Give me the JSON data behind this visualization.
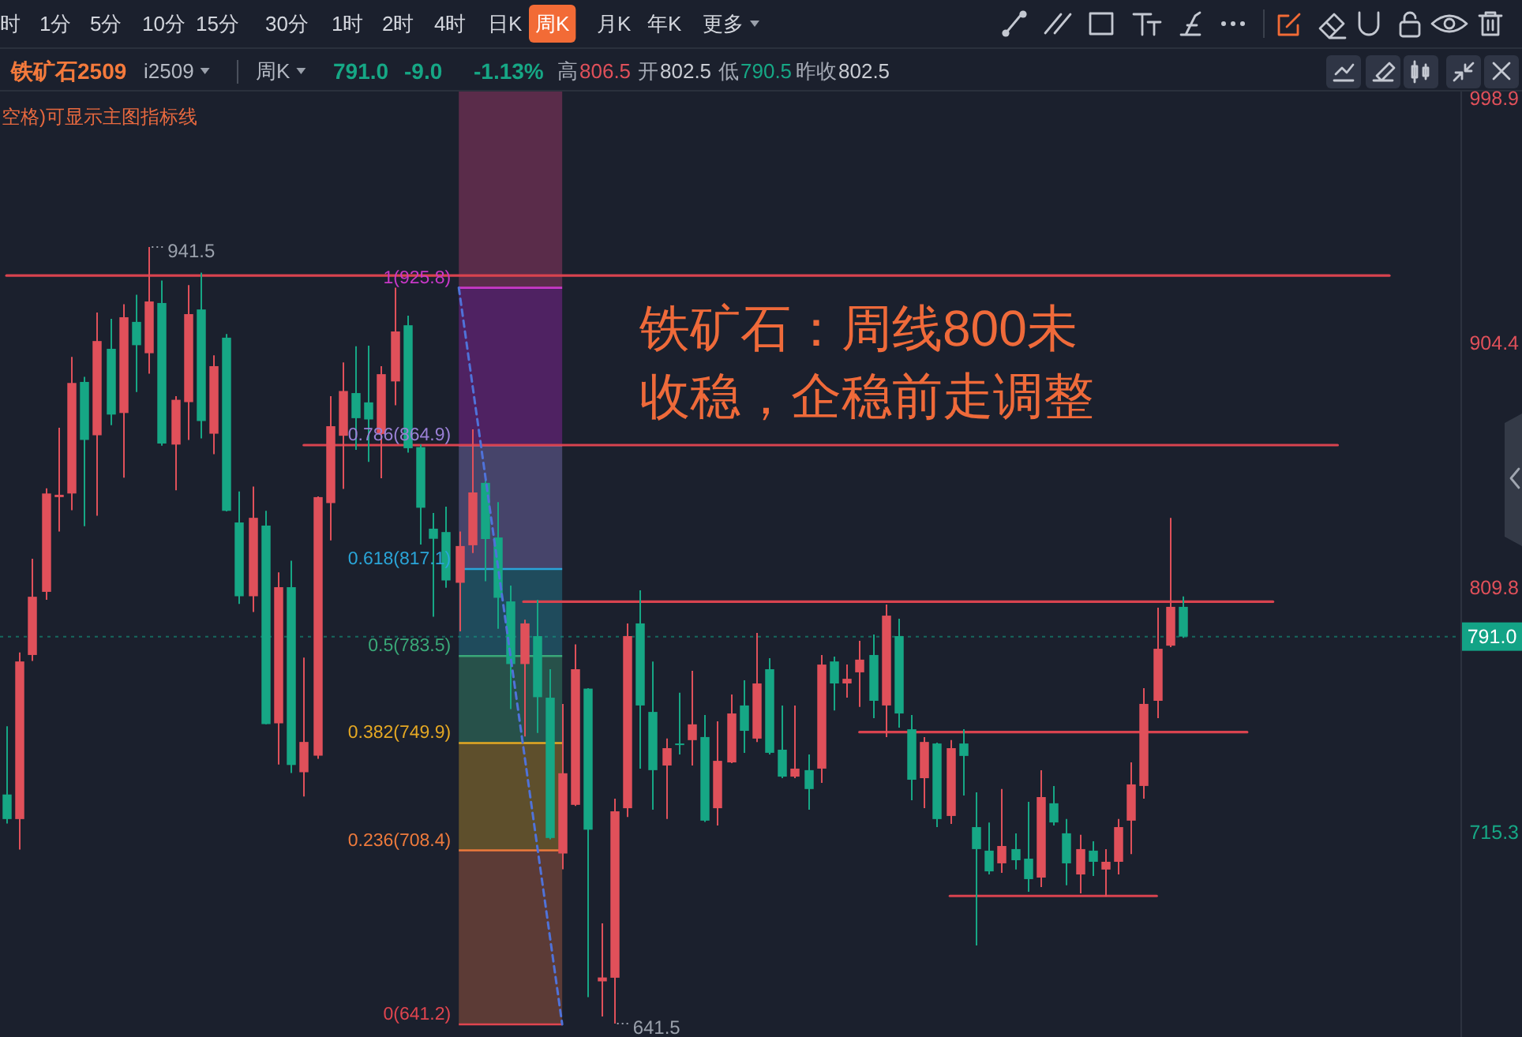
{
  "chart_data": {
    "type": "candlestick",
    "title": "铁矿石2509",
    "categories": [
      null,
      null,
      null,
      null,
      null,
      null,
      null,
      null,
      null,
      null,
      null,
      null,
      null,
      null,
      null,
      null,
      null,
      null,
      null,
      null,
      null,
      null,
      null,
      null,
      null,
      null,
      null,
      null,
      null,
      null,
      null,
      null,
      null,
      null,
      null,
      null,
      null,
      null,
      null,
      null,
      null,
      null,
      null,
      null,
      null,
      null,
      null,
      null,
      null,
      null,
      null,
      null,
      null,
      null,
      null,
      null,
      null,
      null,
      null,
      null,
      null,
      null,
      null,
      null,
      null,
      null,
      null,
      null,
      null,
      null,
      null,
      null,
      null,
      null,
      null,
      null,
      null,
      null,
      null,
      null,
      null,
      null,
      null,
      null,
      null,
      null,
      null,
      null,
      null,
      null,
      null,
      null,
      null,
      null,
      null,
      null,
      null,
      null,
      null,
      null,
      null,
      null,
      null,
      null,
      null,
      null,
      null,
      null,
      null,
      null,
      null,
      null,
      null
    ],
    "ohlc": [
      [
        730.0,
        756.4,
        718.8,
        720.5
      ],
      [
        720.5,
        784.9,
        708.7,
        781.4
      ],
      [
        783.9,
        821.1,
        781.6,
        806.4
      ],
      [
        808.3,
        848.3,
        805.2,
        846.3
      ],
      [
        844.9,
        871.7,
        831.6,
        845.8
      ],
      [
        846.3,
        899.1,
        839.8,
        889.0
      ],
      [
        889.4,
        891.4,
        833.7,
        867.0
      ],
      [
        868.8,
        916.2,
        837.7,
        905.2
      ],
      [
        902.2,
        913.8,
        872.7,
        876.8
      ],
      [
        877.4,
        919.4,
        852.4,
        914.4
      ],
      [
        912.6,
        923.1,
        885.5,
        903.6
      ],
      [
        900.5,
        941.5,
        892.6,
        920.5
      ],
      [
        919.9,
        928.6,
        864.8,
        865.6
      ],
      [
        865.2,
        883.9,
        847.5,
        882.5
      ],
      [
        881.6,
        926.8,
        867.0,
        915.6
      ],
      [
        917.4,
        931.6,
        867.6,
        874.3
      ],
      [
        869.4,
        899.7,
        861.5,
        895.5
      ],
      [
        906.5,
        907.9,
        839.4,
        839.6
      ],
      [
        835.1,
        847.1,
        803.6,
        806.6
      ],
      [
        806.6,
        849.0,
        800.5,
        836.9
      ],
      [
        833.9,
        839.6,
        757.1,
        757.2
      ],
      [
        757.5,
        815.8,
        741.6,
        810.1
      ],
      [
        810.1,
        820.3,
        738.3,
        741.4
      ],
      [
        738.6,
        782.9,
        729.2,
        750.3
      ],
      [
        745.0,
        845.2,
        743.8,
        844.9
      ],
      [
        842.6,
        883.9,
        828.2,
        872.3
      ],
      [
        868.6,
        896.9,
        848.1,
        885.9
      ],
      [
        885.1,
        903.2,
        863.2,
        875.4
      ],
      [
        881.5,
        903.4,
        858.5,
        874.9
      ],
      [
        869.3,
        895.5,
        852.2,
        892.4
      ],
      [
        889.6,
        925.8,
        880.4,
        908.9
      ],
      [
        911.3,
        915.0,
        862.1,
        863.8
      ],
      [
        864.2,
        865.2,
        826.6,
        840.8
      ],
      [
        832.7,
        838.8,
        798.7,
        828.8
      ],
      [
        831.4,
        841.2,
        809.9,
        812.7
      ],
      [
        811.8,
        831.6,
        793.0,
        826.0
      ],
      [
        826.3,
        871.1,
        823.3,
        846.7
      ],
      [
        850.4,
        852.0,
        812.4,
        828.7
      ],
      [
        829.3,
        843.0,
        794.0,
        806.0
      ],
      [
        804.6,
        810.7,
        763.0,
        780.4
      ],
      [
        780.4,
        797.5,
        752.4,
        796.1
      ],
      [
        791.2,
        805.2,
        753.8,
        767.6
      ],
      [
        767.4,
        778.4,
        712.7,
        713.2
      ],
      [
        707.2,
        765.0,
        701.1,
        738.2
      ],
      [
        726.0,
        788.0,
        725.6,
        778.4
      ],
      [
        770.9,
        771.1,
        651.7,
        716.4
      ],
      [
        657.8,
        680.2,
        644.2,
        659.3
      ],
      [
        659.2,
        728.4,
        641.5,
        723.5
      ],
      [
        724.7,
        796.1,
        721.3,
        791.2
      ],
      [
        796.1,
        808.9,
        740.0,
        764.4
      ],
      [
        761.9,
        781.4,
        724.1,
        739.4
      ],
      [
        741.2,
        751.6,
        720.5,
        747.9
      ],
      [
        749.7,
        769.3,
        745.5,
        749.1
      ],
      [
        751.0,
        777.8,
        741.2,
        757.1
      ],
      [
        752.2,
        760.7,
        719.4,
        719.9
      ],
      [
        724.7,
        758.3,
        718.0,
        743.0
      ],
      [
        742.4,
        768.6,
        742.1,
        761.3
      ],
      [
        764.4,
        774.1,
        746.1,
        754.6
      ],
      [
        751.6,
        792.4,
        750.3,
        772.9
      ],
      [
        778.4,
        782.7,
        745.5,
        746.1
      ],
      [
        747.3,
        764.4,
        736.3,
        736.9
      ],
      [
        736.9,
        764.4,
        736.3,
        740.0
      ],
      [
        739.4,
        745.5,
        724.1,
        732.1
      ],
      [
        740.0,
        783.9,
        734.5,
        780.2
      ],
      [
        781.4,
        783.3,
        762.5,
        772.9
      ],
      [
        772.9,
        780.2,
        767.4,
        774.7
      ],
      [
        777.2,
        789.4,
        763.8,
        782.1
      ],
      [
        783.9,
        791.8,
        759.5,
        766.2
      ],
      [
        764.4,
        803.4,
        752.2,
        799.1
      ],
      [
        791.2,
        797.9,
        755.8,
        761.3
      ],
      [
        755.2,
        760.7,
        727.8,
        735.7
      ],
      [
        736.3,
        752.2,
        724.7,
        750.3
      ],
      [
        749.7,
        750.0,
        717.4,
        720.5
      ],
      [
        721.7,
        751.0,
        718.6,
        747.9
      ],
      [
        749.7,
        755.2,
        729.6,
        744.9
      ],
      [
        717.4,
        730.8,
        671.7,
        708.9
      ],
      [
        708.3,
        719.2,
        699.1,
        700.3
      ],
      [
        703.4,
        732.1,
        699.7,
        710.1
      ],
      [
        708.9,
        715.0,
        701.0,
        704.6
      ],
      [
        705.2,
        727.2,
        692.4,
        697.3
      ],
      [
        697.9,
        739.4,
        694.2,
        729.0
      ],
      [
        726.6,
        733.3,
        718.0,
        719.2
      ],
      [
        715.0,
        720.5,
        694.9,
        703.4
      ],
      [
        699.1,
        714.4,
        691.8,
        708.9
      ],
      [
        708.3,
        711.9,
        698.5,
        704.0
      ],
      [
        701.0,
        708.9,
        690.6,
        704.0
      ],
      [
        704.0,
        720.5,
        699.1,
        717.4
      ],
      [
        719.9,
        742.4,
        707.0,
        733.9
      ],
      [
        733.3,
        771.1,
        728.4,
        765.0
      ],
      [
        766.2,
        802.2,
        759.5,
        786.3
      ],
      [
        787.5,
        836.9,
        786.9,
        802.5
      ],
      [
        802.5,
        806.5,
        790.5,
        791.0
      ],
      null,
      null,
      null,
      null,
      null,
      null,
      null,
      null,
      null,
      null,
      null,
      null,
      null,
      null,
      null,
      null,
      null,
      null,
      null,
      null,
      null
    ],
    "colors": [
      "#16a785",
      "#e0505a",
      "#e0505a",
      "#e0505a",
      "#e0505a",
      "#e0505a",
      "#16a785",
      "#e0505a",
      "#16a785",
      "#e0505a",
      "#16a785",
      "#e0505a",
      "#16a785",
      "#e0505a",
      "#e0505a",
      "#16a785",
      "#e0505a",
      "#16a785",
      "#16a785",
      "#e0505a",
      "#16a785",
      "#e0505a",
      "#16a785",
      "#e0505a",
      "#e0505a",
      "#e0505a",
      "#e0505a",
      "#16a785",
      "#16a785",
      "#e0505a",
      "#e0505a",
      "#16a785",
      "#16a785",
      "#16a785",
      "#16a785",
      "#e0505a",
      "#e0505a",
      "#16a785",
      "#16a785",
      "#16a785",
      "#e0505a",
      "#16a785",
      "#16a785",
      "#e0505a",
      "#e0505a",
      "#16a785",
      "#e0505a",
      "#e0505a",
      "#e0505a",
      "#16a785",
      "#16a785",
      "#e0505a",
      "#16a785",
      "#e0505a",
      "#16a785",
      "#e0505a",
      "#e0505a",
      "#16a785",
      "#e0505a",
      "#16a785",
      "#16a785",
      "#e0505a",
      "#16a785",
      "#e0505a",
      "#16a785",
      "#e0505a",
      "#e0505a",
      "#16a785",
      "#e0505a",
      "#16a785",
      "#16a785",
      "#e0505a",
      "#16a785",
      "#e0505a",
      "#16a785",
      "#16a785",
      "#16a785",
      "#e0505a",
      "#16a785",
      "#16a785",
      "#e0505a",
      "#16a785",
      "#16a785",
      "#e0505a",
      "#16a785",
      "#e0505a",
      "#e0505a",
      "#e0505a",
      "#e0505a",
      "#e0505a",
      "#e0505a",
      "#16a785",
      null,
      null,
      null,
      null,
      null,
      null,
      null,
      null,
      null,
      null,
      null,
      null,
      null,
      null,
      null,
      null,
      null,
      null,
      null,
      null,
      null
    ],
    "series": [
      {
        "type": "line",
        "color": "#4f72d9",
        "line_style": "dashed",
        "values": [
          null,
          null,
          null,
          null,
          null,
          null,
          null,
          null,
          null,
          null,
          null,
          null,
          null,
          null,
          null,
          null,
          null,
          null,
          null,
          null,
          null,
          null,
          null,
          null,
          null,
          null,
          null,
          null,
          null,
          null,
          null,
          null,
          null,
          null,
          null,
          925.8,
          890.2,
          854.7,
          819.1,
          783.5,
          748.0,
          712.4,
          676.8,
          641.2,
          null,
          null,
          null,
          null,
          null,
          null,
          null,
          null,
          null,
          null,
          null,
          null,
          null,
          null,
          null,
          null,
          null,
          null,
          null,
          null,
          null,
          null,
          null,
          null,
          null,
          null,
          null,
          null,
          null,
          null,
          null,
          null,
          null,
          null,
          null,
          null,
          null,
          null,
          null,
          null,
          null,
          null,
          null,
          null,
          null,
          null,
          null,
          null,
          null,
          null,
          null,
          null,
          null,
          null,
          null,
          null,
          null,
          null,
          null,
          null,
          null,
          null,
          null,
          null,
          null,
          null,
          null,
          null,
          null
        ]
      },
      {
        "type": "line",
        "color": "#d9434f",
        "values": [
          930.5,
          930.5,
          930.5,
          930.5,
          930.5,
          930.5,
          930.5,
          930.5,
          930.5,
          930.5,
          930.5,
          930.5,
          930.5,
          930.5,
          930.5,
          930.5,
          930.5,
          930.5,
          930.5,
          930.5,
          930.5,
          930.5,
          930.5,
          930.5,
          930.5,
          930.5,
          930.5,
          930.5,
          930.5,
          930.5,
          930.5,
          930.5,
          930.5,
          930.5,
          930.5,
          930.5,
          930.5,
          930.5,
          930.5,
          930.5,
          930.5,
          930.5,
          930.5,
          930.5,
          930.5,
          930.5,
          930.5,
          930.5,
          930.5,
          930.5,
          930.5,
          930.5,
          930.5,
          930.5,
          930.5,
          930.5,
          930.5,
          930.5,
          930.5,
          930.5,
          930.5,
          930.5,
          930.5,
          930.5,
          930.5,
          930.5,
          930.5,
          930.5,
          930.5,
          930.5,
          930.5,
          930.5,
          930.5,
          930.5,
          930.5,
          930.5,
          930.5,
          930.5,
          930.5,
          930.5,
          930.5,
          930.5,
          930.5,
          930.5,
          930.5,
          930.5,
          930.5,
          930.5,
          930.5,
          930.5,
          930.5,
          930.5,
          930.5,
          930.5,
          930.5,
          930.5,
          930.5,
          930.5,
          930.5,
          930.5,
          930.5,
          930.5,
          930.5,
          930.5,
          930.5,
          930.5,
          930.5,
          930.5,
          null,
          null,
          null,
          null,
          null
        ]
      },
      {
        "type": "line",
        "color": "#d9434f",
        "values": [
          null,
          null,
          null,
          null,
          null,
          null,
          null,
          null,
          null,
          null,
          null,
          null,
          null,
          null,
          null,
          null,
          null,
          null,
          null,
          null,
          null,
          null,
          null,
          865.0,
          865.0,
          865.0,
          865.0,
          865.0,
          865.0,
          865.0,
          865.0,
          865.0,
          865.0,
          865.0,
          865.0,
          865.0,
          865.0,
          865.0,
          865.0,
          865.0,
          865.0,
          865.0,
          865.0,
          865.0,
          865.0,
          865.0,
          865.0,
          865.0,
          865.0,
          865.0,
          865.0,
          865.0,
          865.0,
          865.0,
          865.0,
          865.0,
          865.0,
          865.0,
          865.0,
          865.0,
          865.0,
          865.0,
          865.0,
          865.0,
          865.0,
          865.0,
          865.0,
          865.0,
          865.0,
          865.0,
          865.0,
          865.0,
          865.0,
          865.0,
          865.0,
          865.0,
          865.0,
          865.0,
          865.0,
          865.0,
          865.0,
          865.0,
          865.0,
          865.0,
          865.0,
          865.0,
          865.0,
          865.0,
          865.0,
          865.0,
          865.0,
          865.0,
          865.0,
          865.0,
          865.0,
          865.0,
          865.0,
          865.0,
          865.0,
          865.0,
          865.0,
          865.0,
          865.0,
          865.0,
          null,
          null,
          null,
          null,
          null,
          null,
          null,
          null,
          null
        ]
      },
      {
        "type": "line",
        "color": "#d9434f",
        "values": [
          null,
          null,
          null,
          null,
          null,
          null,
          null,
          null,
          null,
          null,
          null,
          null,
          null,
          null,
          null,
          null,
          null,
          null,
          null,
          null,
          null,
          null,
          null,
          null,
          null,
          null,
          null,
          null,
          null,
          null,
          null,
          null,
          null,
          null,
          null,
          null,
          null,
          null,
          null,
          null,
          804.5,
          804.5,
          804.5,
          804.5,
          804.5,
          804.5,
          804.5,
          804.5,
          804.5,
          804.5,
          804.5,
          804.5,
          804.5,
          804.5,
          804.5,
          804.5,
          804.5,
          804.5,
          804.5,
          804.5,
          804.5,
          804.5,
          804.5,
          804.5,
          804.5,
          804.5,
          804.5,
          804.5,
          804.5,
          804.5,
          804.5,
          804.5,
          804.5,
          804.5,
          804.5,
          804.5,
          804.5,
          804.5,
          804.5,
          804.5,
          804.5,
          804.5,
          804.5,
          804.5,
          804.5,
          804.5,
          804.5,
          804.5,
          804.5,
          804.5,
          804.5,
          804.5,
          804.5,
          804.5,
          804.5,
          804.5,
          804.5,
          804.5,
          804.5,
          null,
          null,
          null,
          null,
          null,
          null,
          null,
          null,
          null,
          null,
          null,
          null,
          null,
          null
        ]
      },
      {
        "type": "line",
        "color": "#d9434f",
        "values": [
          null,
          null,
          null,
          null,
          null,
          null,
          null,
          null,
          null,
          null,
          null,
          null,
          null,
          null,
          null,
          null,
          null,
          null,
          null,
          null,
          null,
          null,
          null,
          null,
          null,
          null,
          null,
          null,
          null,
          null,
          null,
          null,
          null,
          null,
          null,
          null,
          null,
          null,
          null,
          null,
          null,
          null,
          null,
          null,
          null,
          null,
          null,
          null,
          null,
          null,
          null,
          null,
          null,
          null,
          null,
          null,
          null,
          null,
          null,
          null,
          null,
          null,
          null,
          null,
          null,
          null,
          754.1,
          754.1,
          754.1,
          754.1,
          754.1,
          754.1,
          754.1,
          754.1,
          754.1,
          754.1,
          754.1,
          754.1,
          754.1,
          754.1,
          754.1,
          754.1,
          754.1,
          754.1,
          754.1,
          754.1,
          754.1,
          754.1,
          754.1,
          754.1,
          754.1,
          754.1,
          754.1,
          754.1,
          754.1,
          754.1,
          754.1,
          null,
          null,
          null,
          null,
          null,
          null,
          null,
          null,
          null,
          null,
          null,
          null,
          null,
          null,
          null,
          null
        ]
      },
      {
        "type": "line",
        "color": "#d9434f",
        "values": [
          null,
          null,
          null,
          null,
          null,
          null,
          null,
          null,
          null,
          null,
          null,
          null,
          null,
          null,
          null,
          null,
          null,
          null,
          null,
          null,
          null,
          null,
          null,
          null,
          null,
          null,
          null,
          null,
          null,
          null,
          null,
          null,
          null,
          null,
          null,
          null,
          null,
          null,
          null,
          null,
          null,
          null,
          null,
          null,
          null,
          null,
          null,
          null,
          null,
          null,
          null,
          null,
          null,
          null,
          null,
          null,
          null,
          null,
          null,
          null,
          null,
          null,
          null,
          null,
          null,
          null,
          null,
          null,
          null,
          null,
          null,
          null,
          null,
          690.8,
          690.8,
          690.8,
          690.8,
          690.8,
          690.8,
          690.8,
          690.8,
          690.8,
          690.8,
          690.8,
          690.8,
          690.8,
          690.8,
          690.8,
          690.8,
          690.8,
          null,
          null,
          null,
          null,
          null,
          null,
          null,
          null,
          null,
          null,
          null,
          null,
          null,
          null,
          null,
          null,
          null,
          null,
          null,
          null,
          null,
          null,
          null
        ]
      }
    ],
    "ylim": [
      636.3,
      1001.6
    ],
    "yticks": [
      715.3,
      809.8,
      904.4,
      998.9
    ],
    "tick_labels": "y",
    "ref_lines": [
      {
        "axis": "y",
        "value": 925.8,
        "label": "1(925.8)",
        "color": "#c838c8"
      },
      {
        "axis": "y",
        "value": 864.9,
        "label": "0.786(864.9)",
        "color": "#9b80d6"
      },
      {
        "axis": "y",
        "value": 817.1,
        "label": "0.618(817.1)",
        "color": "#2aa5d8"
      },
      {
        "axis": "y",
        "value": 783.5,
        "label": "0.5(783.5)",
        "color": "#3aa878"
      },
      {
        "axis": "y",
        "value": 749.9,
        "label": "0.382(749.9)",
        "color": "#e5a823"
      },
      {
        "axis": "y",
        "value": 708.4,
        "label": "0.236(708.4)",
        "color": "#ee7a3c"
      },
      {
        "axis": "y",
        "value": 641.2,
        "label": "0(641.2)",
        "color": "#e0454f"
      },
      {
        "axis": "y",
        "value": 791.0,
        "label": "791.0",
        "color": "#13a386",
        "line_style": "dotted"
      }
    ],
    "bands": [
      {
        "axis": "y",
        "from": 925.8,
        "to": 1001.6,
        "color": "#5a2c4a"
      },
      {
        "axis": "y",
        "from": 864.9,
        "to": 925.8,
        "color": "#4f2262"
      },
      {
        "axis": "y",
        "from": 817.1,
        "to": 864.9,
        "color": "#46446a"
      },
      {
        "axis": "y",
        "from": 783.5,
        "to": 817.1,
        "color": "#1f4b5c"
      },
      {
        "axis": "y",
        "from": 749.9,
        "to": 783.5,
        "color": "#27514a"
      },
      {
        "axis": "y",
        "from": 708.4,
        "to": 749.9,
        "color": "#5e4f2c"
      },
      {
        "axis": "y",
        "from": 641.2,
        "to": 708.4,
        "color": "#5c3b36"
      }
    ],
    "annotations": [
      "时",
      "1分",
      "5分",
      "10分",
      "15分",
      "30分",
      "1时",
      "2时",
      "4时",
      "日K",
      "周K",
      "月K",
      "年K",
      "更多",
      "i2509",
      "周K",
      "791.0",
      "-9.0",
      "-1.13%",
      "高",
      "806.5",
      "开",
      "802.5",
      "低",
      "790.5",
      "昨收",
      "802.5",
      "空格)可显示主图指标线",
      "铁矿石：周线800未收稳，企稳前走调整",
      "941.5",
      "641.5"
    ]
  }
}
